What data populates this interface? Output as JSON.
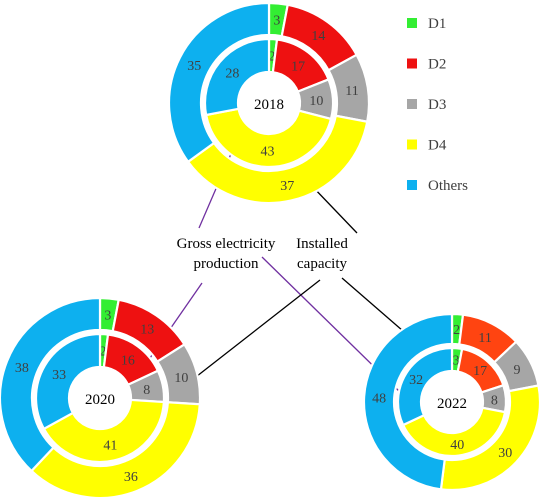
{
  "chart_data": {
    "type": "pie",
    "variant": "nested-donut",
    "legend": {
      "placement": "top-right",
      "items": [
        {
          "label": "D1",
          "color": "#33ee33"
        },
        {
          "label": "D2",
          "color": "#ee1111"
        },
        {
          "label": "D3",
          "color": "#a6a6a6"
        },
        {
          "label": "D4",
          "color": "#ffff00"
        },
        {
          "label": "Others",
          "color": "#0db0ef"
        }
      ]
    },
    "annotations": {
      "outer_ring_label_line1": "Installed",
      "outer_ring_label_line2": "capacity",
      "inner_ring_label_line1": "Gross electricity",
      "inner_ring_label_line2": "production"
    },
    "charts": [
      {
        "year": "2018",
        "outer": [
          {
            "label": "D1",
            "value": 3,
            "color": "#33ee33"
          },
          {
            "label": "D2",
            "value": 14,
            "color": "#ee1111"
          },
          {
            "label": "D3",
            "value": 11,
            "color": "#a6a6a6"
          },
          {
            "label": "D4",
            "value": 37,
            "color": "#ffff00"
          },
          {
            "label": "Others",
            "value": 35,
            "color": "#0db0ef"
          }
        ],
        "inner": [
          {
            "label": "D1",
            "value": 2,
            "color": "#33ee33"
          },
          {
            "label": "D2",
            "value": 17,
            "color": "#ee1111"
          },
          {
            "label": "D3",
            "value": 10,
            "color": "#a6a6a6"
          },
          {
            "label": "D4",
            "value": 43,
            "color": "#ffff00"
          },
          {
            "label": "Others",
            "value": 28,
            "color": "#0db0ef"
          }
        ]
      },
      {
        "year": "2020",
        "outer": [
          {
            "label": "D1",
            "value": 3,
            "color": "#33ee33"
          },
          {
            "label": "D2",
            "value": 13,
            "color": "#ee1111"
          },
          {
            "label": "D3",
            "value": 10,
            "color": "#a6a6a6"
          },
          {
            "label": "D4",
            "value": 36,
            "color": "#ffff00"
          },
          {
            "label": "Others",
            "value": 38,
            "color": "#0db0ef"
          }
        ],
        "inner": [
          {
            "label": "D1",
            "value": 2,
            "color": "#33ee33"
          },
          {
            "label": "D2",
            "value": 16,
            "color": "#ee1111"
          },
          {
            "label": "D3",
            "value": 8,
            "color": "#a6a6a6"
          },
          {
            "label": "D4",
            "value": 41,
            "color": "#ffff00"
          },
          {
            "label": "Others",
            "value": 33,
            "color": "#0db0ef"
          }
        ]
      },
      {
        "year": "2022",
        "outer": [
          {
            "label": "D1",
            "value": 2,
            "color": "#33ee33"
          },
          {
            "label": "D2",
            "value": 11,
            "color": "#ff4411"
          },
          {
            "label": "D3",
            "value": 9,
            "color": "#a6a6a6"
          },
          {
            "label": "D4",
            "value": 30,
            "color": "#ffff00"
          },
          {
            "label": "Others",
            "value": 48,
            "color": "#0db0ef"
          }
        ],
        "inner": [
          {
            "label": "D1",
            "value": 3,
            "color": "#33ee33"
          },
          {
            "label": "D2",
            "value": 17,
            "color": "#ff4411"
          },
          {
            "label": "D3",
            "value": 8,
            "color": "#a6a6a6"
          },
          {
            "label": "D4",
            "value": 40,
            "color": "#ffff00"
          },
          {
            "label": "Others",
            "value": 32,
            "color": "#0db0ef"
          }
        ]
      }
    ]
  },
  "colors": {
    "inner_annotation_line": "#7030a0",
    "outer_annotation_line": "#000000"
  }
}
